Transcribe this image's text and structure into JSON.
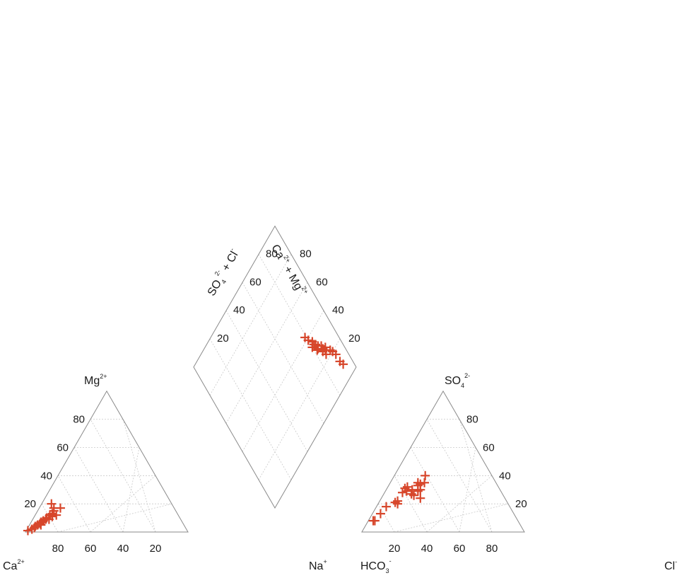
{
  "chart_data": {
    "type": "scatter",
    "subtype": "piper-diagram",
    "marker": "plus",
    "marker_color": "#d7462b",
    "frame_color": "#8a8a8a",
    "grid": true,
    "title": "",
    "ticks": [
      "20",
      "40",
      "60",
      "80"
    ],
    "cation_triangle": {
      "labels": {
        "left_parts": [
          "Ca"
        ],
        "left_sups": [
          "2+"
        ],
        "right_parts": [
          "Na"
        ],
        "right_sups": [
          "+"
        ],
        "top_parts": [
          "Mg"
        ],
        "top_sups": [
          "2+"
        ]
      },
      "points_pct_Mg_Na": [
        [
          1,
          1
        ],
        [
          2,
          3
        ],
        [
          3,
          4
        ],
        [
          4,
          4
        ],
        [
          5,
          5
        ],
        [
          6,
          6
        ],
        [
          5,
          7
        ],
        [
          8,
          7
        ],
        [
          10,
          8
        ],
        [
          9,
          10
        ],
        [
          12,
          9
        ],
        [
          11,
          11
        ],
        [
          13,
          10
        ],
        [
          15,
          10
        ],
        [
          17,
          9
        ],
        [
          17,
          13
        ],
        [
          12,
          13
        ],
        [
          20,
          6
        ],
        [
          9,
          8
        ],
        [
          7,
          6
        ]
      ]
    },
    "anion_triangle": {
      "labels": {
        "left_parts": [
          "HCO",
          "3"
        ],
        "left_sups": [
          "-"
        ],
        "right_parts": [
          "Cl"
        ],
        "right_sups": [
          "-"
        ],
        "top_parts": [
          "SO",
          "4"
        ],
        "top_sups": [
          "2-"
        ]
      },
      "points_pct_SO4_Cl": [
        [
          8,
          3
        ],
        [
          8,
          4
        ],
        [
          13,
          5
        ],
        [
          18,
          6
        ],
        [
          21,
          10
        ],
        [
          20,
          12
        ],
        [
          22,
          11
        ],
        [
          28,
          11
        ],
        [
          31,
          11
        ],
        [
          29,
          13
        ],
        [
          32,
          12
        ],
        [
          30,
          16
        ],
        [
          27,
          17
        ],
        [
          26,
          19
        ],
        [
          29,
          20
        ],
        [
          33,
          18
        ],
        [
          35,
          17
        ],
        [
          30,
          21
        ],
        [
          40,
          19
        ],
        [
          35,
          21
        ],
        [
          34,
          19
        ],
        [
          24,
          24
        ]
      ]
    },
    "diamond": {
      "labels": {
        "left_parts": [
          "SO",
          "4",
          " + Cl"
        ],
        "left_sups": [
          "2-",
          "-"
        ],
        "right_parts": [
          "Ca",
          " + Mg"
        ],
        "right_sups": [
          "2+",
          "2+"
        ]
      },
      "points_pct_SO4Cl_CaMg": [
        [
          9,
          93
        ],
        [
          12,
          92
        ],
        [
          17,
          92
        ],
        [
          20,
          91
        ],
        [
          22,
          90
        ],
        [
          23,
          86
        ],
        [
          26,
          88
        ],
        [
          25,
          87
        ],
        [
          26,
          85
        ],
        [
          29,
          86
        ],
        [
          31,
          84
        ],
        [
          30,
          82
        ],
        [
          33,
          83
        ],
        [
          34,
          82
        ],
        [
          36,
          82
        ],
        [
          39,
          80
        ],
        [
          42,
          79
        ],
        [
          34,
          80
        ],
        [
          30,
          83
        ],
        [
          27,
          86
        ]
      ]
    }
  }
}
